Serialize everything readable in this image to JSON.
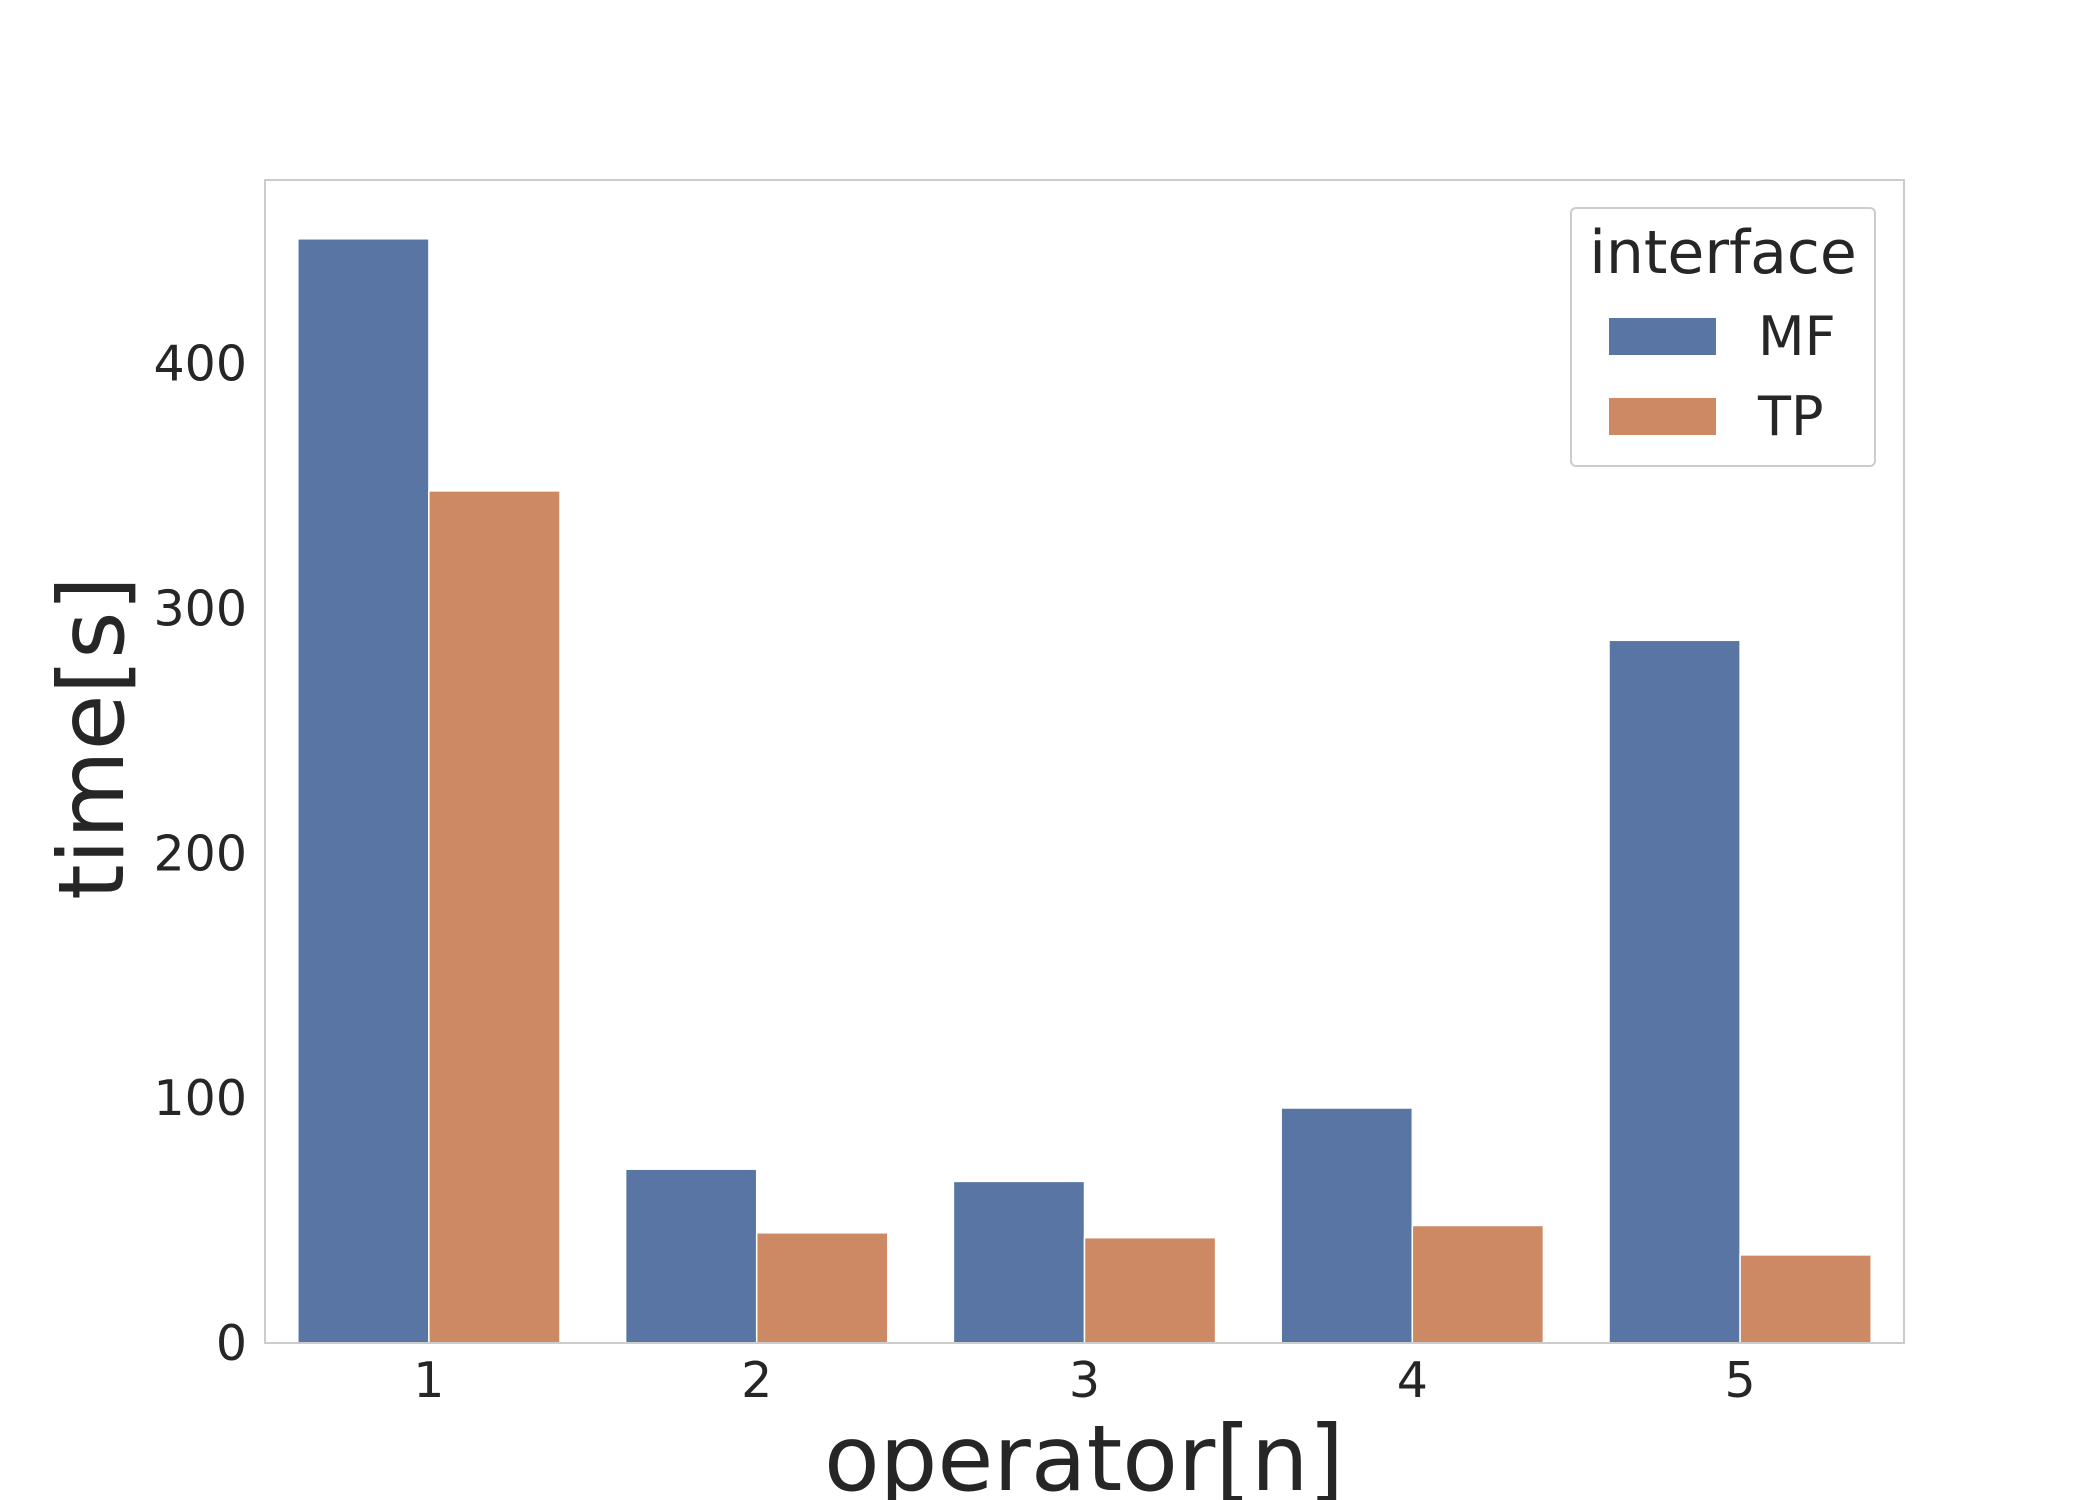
{
  "chart_data": {
    "type": "bar",
    "categories": [
      "1",
      "2",
      "3",
      "4",
      "5"
    ],
    "series": [
      {
        "name": "MF",
        "color": "#5875a4",
        "values": [
          451,
          71,
          66,
          96,
          287
        ]
      },
      {
        "name": "TP",
        "color": "#cc8963",
        "values": [
          348,
          45,
          43,
          48,
          36
        ]
      }
    ],
    "title": "",
    "xlabel": "operator[n]",
    "ylabel": "time[s]",
    "ylim": [
      0,
      475
    ],
    "yticks": [
      0,
      100,
      200,
      300,
      400
    ],
    "grid": false,
    "legend": {
      "title": "interface",
      "position": "top-right"
    }
  }
}
